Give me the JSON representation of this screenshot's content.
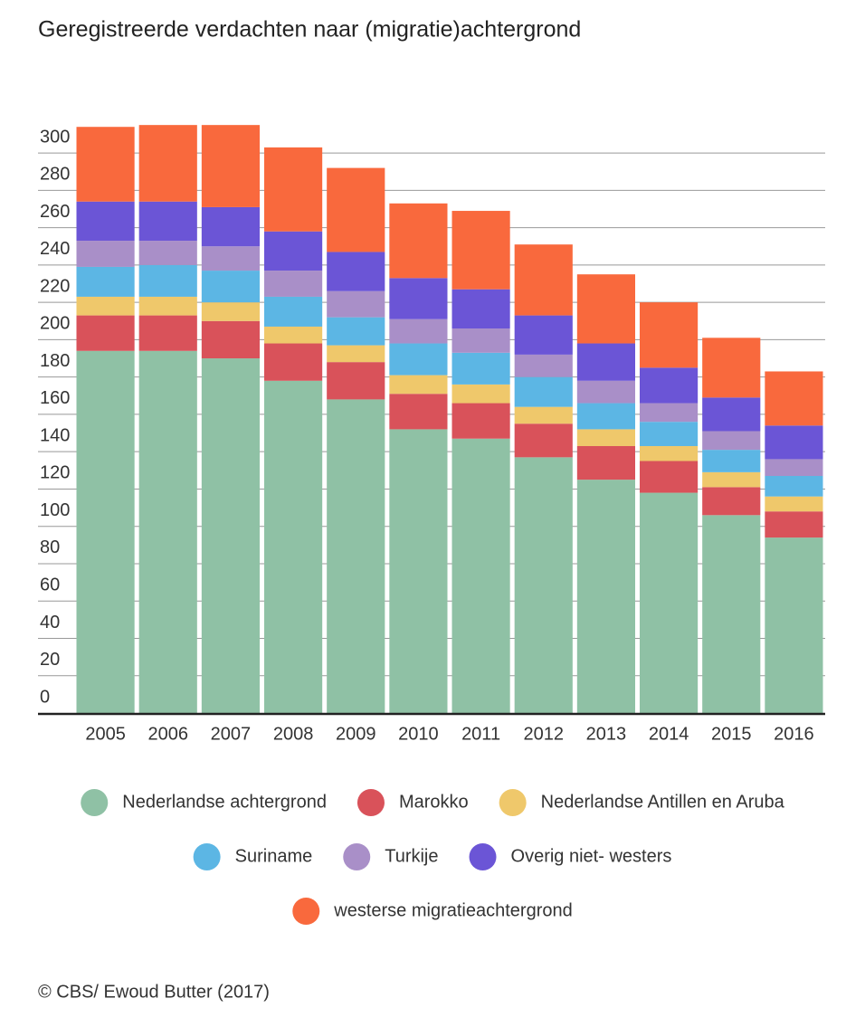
{
  "chart_data": {
    "type": "stacked-bar",
    "title": "Geregistreerde verdachten naar (migratie)achtergrond",
    "categories": [
      "2005",
      "2006",
      "2007",
      "2008",
      "2009",
      "2010",
      "2011",
      "2012",
      "2013",
      "2014",
      "2015",
      "2016"
    ],
    "series": [
      {
        "name": "Nederlandse achtergrond",
        "color": "#8fc1a5",
        "values": [
          194,
          194,
          190,
          178,
          168,
          152,
          147,
          137,
          125,
          118,
          106,
          94
        ]
      },
      {
        "name": "Marokko",
        "color": "#d9525a",
        "values": [
          19,
          19,
          20,
          20,
          20,
          19,
          19,
          18,
          18,
          17,
          15,
          14
        ]
      },
      {
        "name": "Nederlandse Antillen en Aruba",
        "color": "#efc86b",
        "values": [
          10,
          10,
          10,
          9,
          9,
          10,
          10,
          9,
          9,
          8,
          8,
          8
        ]
      },
      {
        "name": "Suriname",
        "color": "#5cb6e4",
        "values": [
          16,
          17,
          17,
          16,
          15,
          17,
          17,
          16,
          14,
          13,
          12,
          11
        ]
      },
      {
        "name": "Turkije",
        "color": "#a98fc8",
        "values": [
          14,
          13,
          13,
          14,
          14,
          13,
          13,
          12,
          12,
          10,
          10,
          9
        ]
      },
      {
        "name": "Overig niet- westers",
        "color": "#6b55d6",
        "values": [
          21,
          21,
          21,
          21,
          21,
          22,
          21,
          21,
          20,
          19,
          18,
          18
        ]
      },
      {
        "name": "westerse migratieachtergrond",
        "color": "#f9693d",
        "values": [
          40,
          41,
          44,
          45,
          45,
          40,
          42,
          38,
          37,
          35,
          32,
          29
        ]
      }
    ],
    "ylim": [
      0,
      320
    ],
    "yticks": [
      0,
      20,
      40,
      60,
      80,
      100,
      120,
      140,
      160,
      180,
      200,
      220,
      240,
      260,
      280,
      300
    ],
    "grid": true,
    "source": "© CBS/ Ewoud Butter (2017)"
  }
}
